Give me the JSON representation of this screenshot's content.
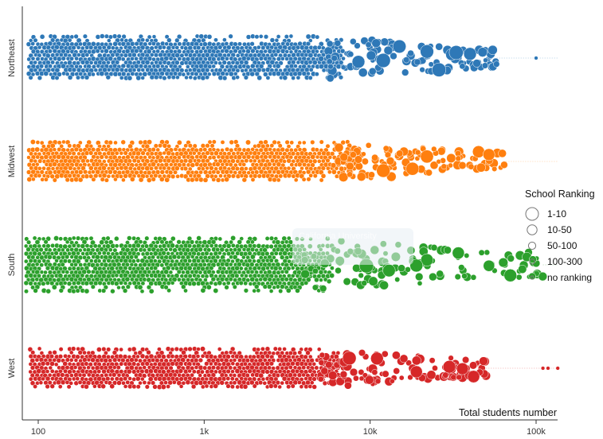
{
  "chart_data": {
    "type": "scatter",
    "subtype": "beeswarm",
    "x_scale": "log",
    "xlim": [
      85,
      135000
    ],
    "x_ticks": [
      {
        "value": 100,
        "label": "100"
      },
      {
        "value": 1000,
        "label": "1k"
      },
      {
        "value": 10000,
        "label": "10k"
      },
      {
        "value": 100000,
        "label": "100k"
      }
    ],
    "xlabel": "Total students number",
    "ylabel": "",
    "grid": false,
    "series": [
      {
        "name": "Northeast",
        "color": "#2e78b7",
        "dense_range": [
          88,
          7000
        ],
        "sparse_range": [
          5000,
          58000
        ],
        "outliers": [
          100000
        ],
        "large_points": [
          15000,
          22000,
          31000,
          33000,
          12000,
          8500,
          26000,
          40000
        ]
      },
      {
        "name": "Midwest",
        "color": "#ff7f0e",
        "dense_range": [
          88,
          8000
        ],
        "sparse_range": [
          6000,
          66000
        ],
        "outliers": [],
        "large_points": [
          22000,
          45000,
          18000,
          12000,
          52000
        ]
      },
      {
        "name": "South",
        "color": "#2ca02c",
        "dense_range": [
          85,
          6000
        ],
        "sparse_range": [
          4000,
          110000
        ],
        "outliers": [],
        "large_points": [
          13000,
          22000,
          9500,
          34000,
          52000,
          70000,
          19000
        ]
      },
      {
        "name": "West",
        "color": "#d62728",
        "dense_range": [
          90,
          7000
        ],
        "sparse_range": [
          5000,
          50000
        ],
        "outliers": [
          110000,
          118000,
          135000
        ],
        "large_points": [
          19000,
          30000,
          42000,
          7500,
          11000,
          36000
        ]
      }
    ],
    "legend": {
      "title": "School Ranking",
      "placement": "right",
      "items": [
        {
          "label": "1-10",
          "size": 1
        },
        {
          "label": "10-50",
          "size": 2
        },
        {
          "label": "50-100",
          "size": 3
        },
        {
          "label": "100-300",
          "size": 4
        },
        {
          "label": "no ranking",
          "size": 5
        }
      ]
    },
    "overlay_text": "California University"
  }
}
